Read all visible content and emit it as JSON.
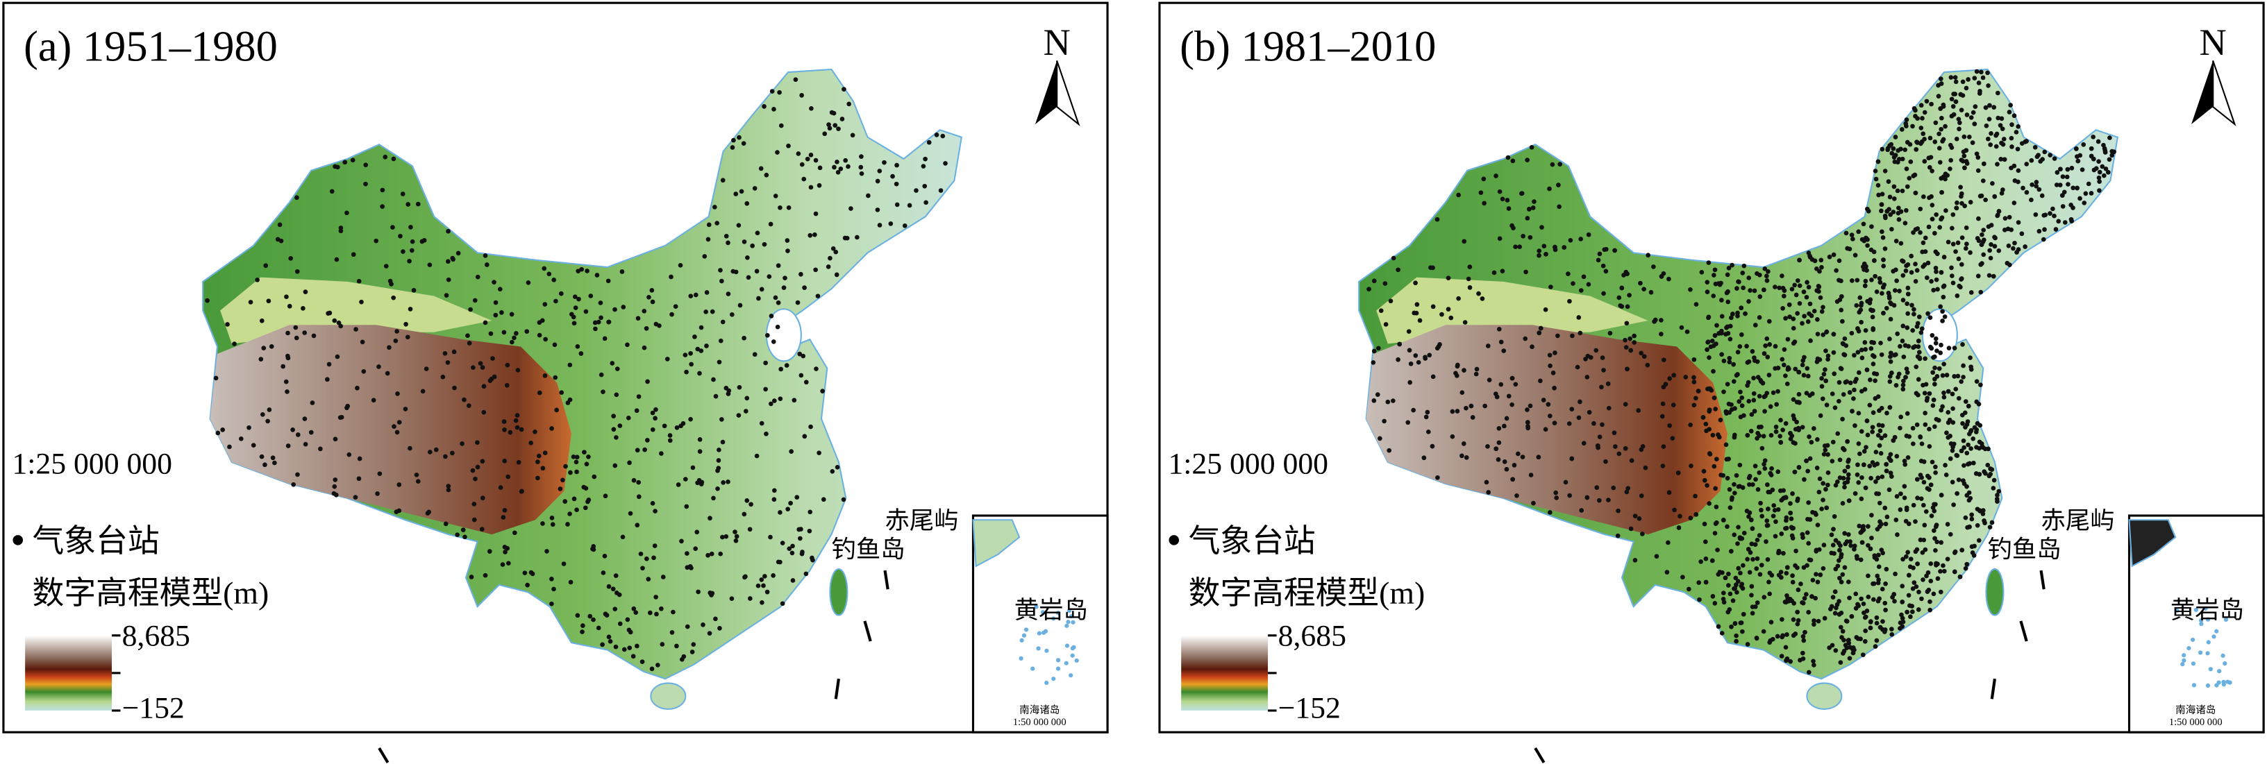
{
  "panels": [
    {
      "title": "(a) 1951–1980",
      "north": "N",
      "scale": "1:25 000 000",
      "station_legend": "气象台站",
      "dem_legend": "数字高程模型(m)",
      "dem_max": "8,685",
      "dem_min": "−152",
      "chiweiyu": "赤尾屿",
      "diaoyudao": "钓鱼岛",
      "huangyandao": "黄岩岛",
      "nanhai": "南海诸岛",
      "inset_scale": "1:50 000 000"
    },
    {
      "title": "(b) 1981–2010",
      "north": "N",
      "scale": "1:25 000 000",
      "station_legend": "气象台站",
      "dem_legend": "数字高程模型(m)",
      "dem_max": "8,685",
      "dem_min": "−152",
      "chiweiyu": "赤尾屿",
      "diaoyudao": "钓鱼岛",
      "huangyandao": "黄岩岛",
      "nanhai": "南海诸岛",
      "inset_scale": "1:50 000 000"
    }
  ]
}
